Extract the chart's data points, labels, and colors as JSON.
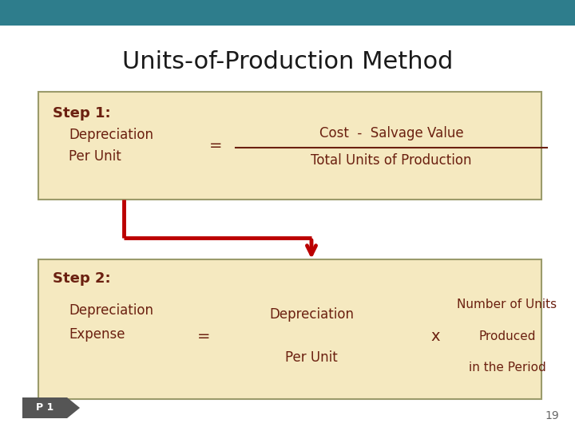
{
  "title": "Units-of-Production Method",
  "title_color": "#1a1a1a",
  "title_fontsize": 22,
  "bg_color": "#ffffff",
  "header_bar_color": "#2e7d8c",
  "box1_bg": "#f5e9c0",
  "box1_border": "#9b9b6b",
  "box2_bg": "#f5e9c0",
  "box2_border": "#9b9b6b",
  "text_color": "#6b2010",
  "step1_label": "Step 1:",
  "step1_sub1": "Depreciation",
  "step1_sub2": "Per Unit",
  "step1_numerator": "Cost  -  Salvage Value",
  "step1_denominator": "Total Units of Production",
  "step2_label": "Step 2:",
  "step2_sub1": "Depreciation",
  "step2_sub2": "Expense",
  "equals1": "=",
  "equals2": "=",
  "times": "x",
  "dep_per_unit1": "Depreciation",
  "dep_per_unit2": "Per Unit",
  "num_units1": "Number of Units",
  "num_units2": "Produced",
  "num_units3": "in the Period",
  "arrow_color": "#bb0000",
  "p1_bg": "#555555",
  "p1_text": "P 1",
  "page_number": "19"
}
